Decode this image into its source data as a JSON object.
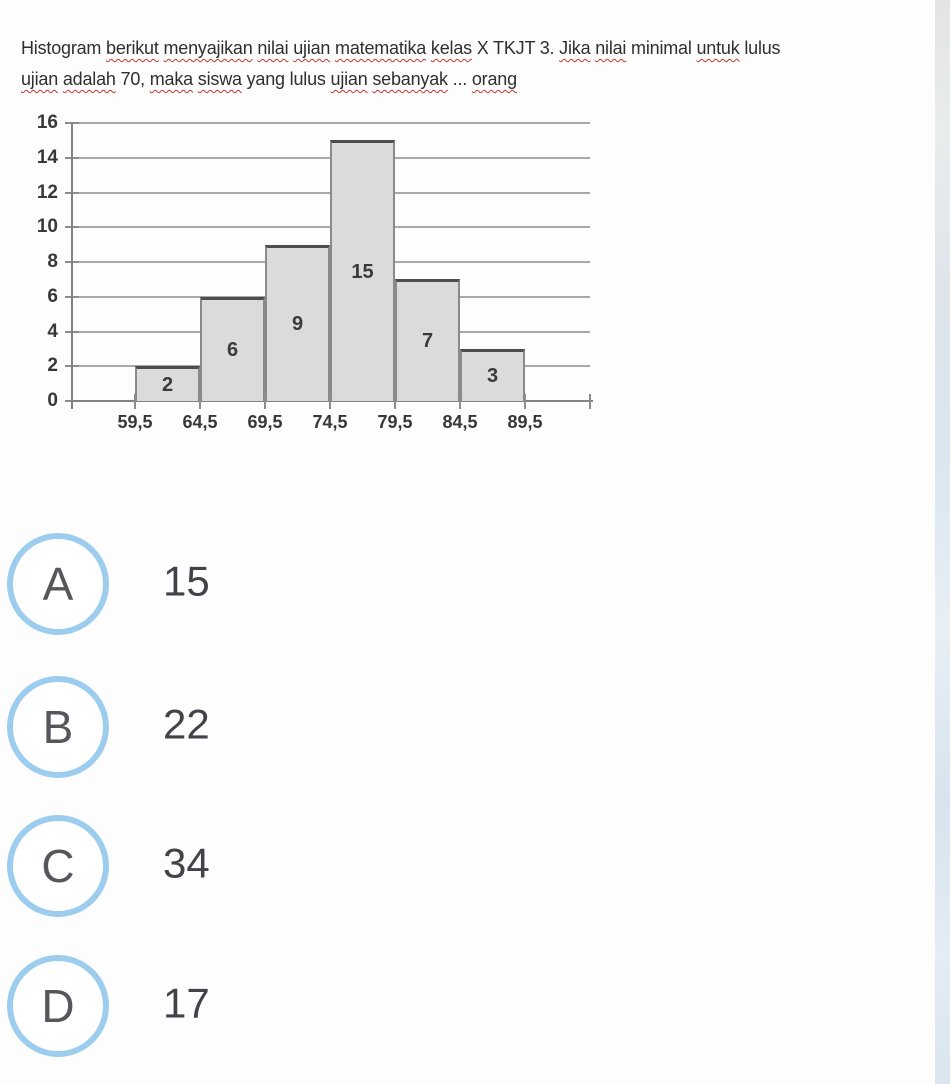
{
  "page": {
    "background": "#fdfdfd",
    "right_strip_accent": "#dbe6f0"
  },
  "question": {
    "lines": [
      {
        "words": [
          {
            "t": "Histogram",
            "u": false
          },
          {
            "t": "berikut",
            "u": true
          },
          {
            "t": "menyajikan",
            "u": true
          },
          {
            "t": "nilai",
            "u": true
          },
          {
            "t": "ujian",
            "u": true
          },
          {
            "t": "matematika",
            "u": true
          },
          {
            "t": "kelas",
            "u": true
          },
          {
            "t": "X",
            "u": false
          },
          {
            "t": "TKJT",
            "u": false
          },
          {
            "t": "3.",
            "u": false
          },
          {
            "t": "Jika",
            "u": true
          },
          {
            "t": "nilai",
            "u": true
          },
          {
            "t": "minimal",
            "u": false
          },
          {
            "t": "untuk",
            "u": true
          },
          {
            "t": "lulus",
            "u": false
          }
        ]
      },
      {
        "words": [
          {
            "t": "ujian",
            "u": true
          },
          {
            "t": "adalah",
            "u": true
          },
          {
            "t": "70,",
            "u": false
          },
          {
            "t": "maka",
            "u": true
          },
          {
            "t": "siswa",
            "u": true
          },
          {
            "t": "yang",
            "u": false
          },
          {
            "t": "lulus",
            "u": false
          },
          {
            "t": "ujian",
            "u": true
          },
          {
            "t": "sebanyak",
            "u": true
          },
          {
            "t": "...",
            "u": false
          },
          {
            "t": "orang",
            "u": true
          }
        ]
      }
    ]
  },
  "chart_data": {
    "type": "bar",
    "title": "",
    "xlabel": "",
    "ylabel": "",
    "bin_edge_labels": [
      "59,5",
      "64,5",
      "69,5",
      "74,5",
      "79,5",
      "84,5",
      "89,5"
    ],
    "bin_edges_numeric": [
      59.5,
      64.5,
      69.5,
      74.5,
      79.5,
      84.5,
      89.5
    ],
    "values": [
      2,
      6,
      9,
      15,
      7,
      3
    ],
    "bar_value_labels": [
      "2",
      "6",
      "9",
      "15",
      "7",
      "3"
    ],
    "yticks": [
      0,
      2,
      4,
      6,
      8,
      10,
      12,
      14,
      16
    ],
    "ytick_labels": [
      "0",
      "2",
      "4",
      "6",
      "8",
      "10",
      "12",
      "14",
      "16"
    ],
    "ylim": [
      0,
      16
    ],
    "grid": true,
    "legend": "none",
    "bar_fill": "#dbdbdb",
    "bar_border": "#8a8a8a",
    "bar_border_top": "#4d4d4d",
    "gridline_color": "#a8a8a8",
    "axis_color": "#828282",
    "label_color": "#383838"
  },
  "options": [
    {
      "label": "A",
      "value": "15"
    },
    {
      "label": "B",
      "value": "22"
    },
    {
      "label": "C",
      "value": "34"
    },
    {
      "label": "D",
      "value": "17"
    }
  ],
  "option_circle_color": "#9dcdee"
}
